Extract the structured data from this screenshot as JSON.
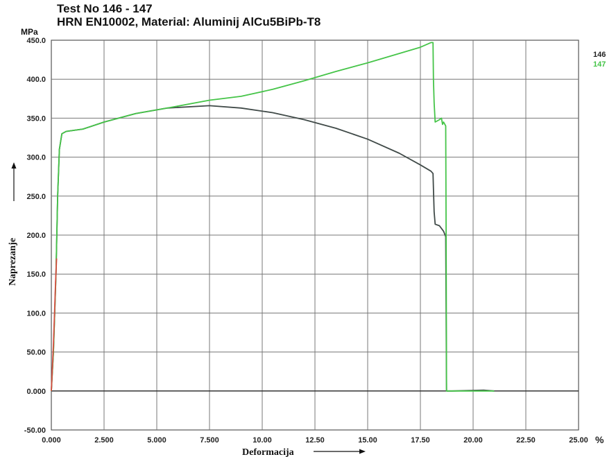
{
  "chart_data": {
    "type": "line",
    "title": "Test No  146 - 147",
    "subtitle": "HRN EN10002, Material: Aluminij AlCu5BiPb-T8",
    "ylabel": "Naprezanje",
    "yunit": "MPa",
    "xlabel": "Deformacija",
    "xunit": "%",
    "xlim": [
      0,
      25
    ],
    "ylim": [
      -50,
      450
    ],
    "xticks": [
      "0.000",
      "2.500",
      "5.000",
      "7.500",
      "10.00",
      "12.50",
      "15.00",
      "17.50",
      "20.00",
      "22.50",
      "25.00"
    ],
    "yticks": [
      "450.0",
      "400.0",
      "350.0",
      "300.0",
      "250.0",
      "200.0",
      "150.0",
      "100.0",
      "50.00",
      "0.000",
      "-50.00"
    ],
    "grid": true,
    "legend_position": "right",
    "series": [
      {
        "name": "146",
        "color": "#404a48",
        "points": [
          [
            0.0,
            0
          ],
          [
            0.1,
            50
          ],
          [
            0.22,
            150
          ],
          [
            0.3,
            250
          ],
          [
            0.38,
            310
          ],
          [
            0.5,
            330
          ],
          [
            0.7,
            333
          ],
          [
            1.5,
            336
          ],
          [
            2.5,
            345
          ],
          [
            4.0,
            356
          ],
          [
            5.5,
            363
          ],
          [
            7.5,
            366
          ],
          [
            9.0,
            363
          ],
          [
            10.5,
            357
          ],
          [
            12.0,
            348
          ],
          [
            13.5,
            337
          ],
          [
            15.0,
            323
          ],
          [
            16.5,
            305
          ],
          [
            17.5,
            290
          ],
          [
            18.0,
            282
          ],
          [
            18.1,
            279
          ],
          [
            18.12,
            260
          ],
          [
            18.15,
            230
          ],
          [
            18.2,
            214
          ],
          [
            18.4,
            212
          ],
          [
            18.6,
            205
          ],
          [
            18.7,
            198
          ],
          [
            18.72,
            100
          ],
          [
            18.74,
            0
          ],
          [
            19.0,
            0
          ],
          [
            20.5,
            1
          ],
          [
            21.0,
            0
          ]
        ]
      },
      {
        "name": "147",
        "color": "#45c448",
        "points": [
          [
            0.0,
            0
          ],
          [
            0.1,
            50
          ],
          [
            0.22,
            150
          ],
          [
            0.3,
            250
          ],
          [
            0.38,
            310
          ],
          [
            0.5,
            330
          ],
          [
            0.7,
            333
          ],
          [
            1.5,
            336
          ],
          [
            2.5,
            345
          ],
          [
            4.0,
            356
          ],
          [
            5.5,
            363
          ],
          [
            7.5,
            373
          ],
          [
            9.0,
            378
          ],
          [
            10.5,
            387
          ],
          [
            12.0,
            398
          ],
          [
            13.5,
            410
          ],
          [
            15.0,
            421
          ],
          [
            16.5,
            433
          ],
          [
            17.5,
            441
          ],
          [
            18.0,
            447
          ],
          [
            18.1,
            447
          ],
          [
            18.12,
            400
          ],
          [
            18.15,
            370
          ],
          [
            18.2,
            345
          ],
          [
            18.4,
            348
          ],
          [
            18.5,
            350
          ],
          [
            18.55,
            342
          ],
          [
            18.6,
            345
          ],
          [
            18.7,
            340
          ],
          [
            18.72,
            200
          ],
          [
            18.74,
            0
          ],
          [
            19.0,
            0
          ],
          [
            21.0,
            0
          ]
        ]
      },
      {
        "name": "",
        "color": "#d94f43",
        "points": [
          [
            0.0,
            0
          ],
          [
            0.05,
            30
          ],
          [
            0.1,
            60
          ],
          [
            0.15,
            100
          ],
          [
            0.2,
            140
          ],
          [
            0.25,
            170
          ]
        ]
      }
    ],
    "legend": [
      {
        "label": "146",
        "color": "#222222"
      },
      {
        "label": "147",
        "color": "#45c448"
      }
    ]
  }
}
